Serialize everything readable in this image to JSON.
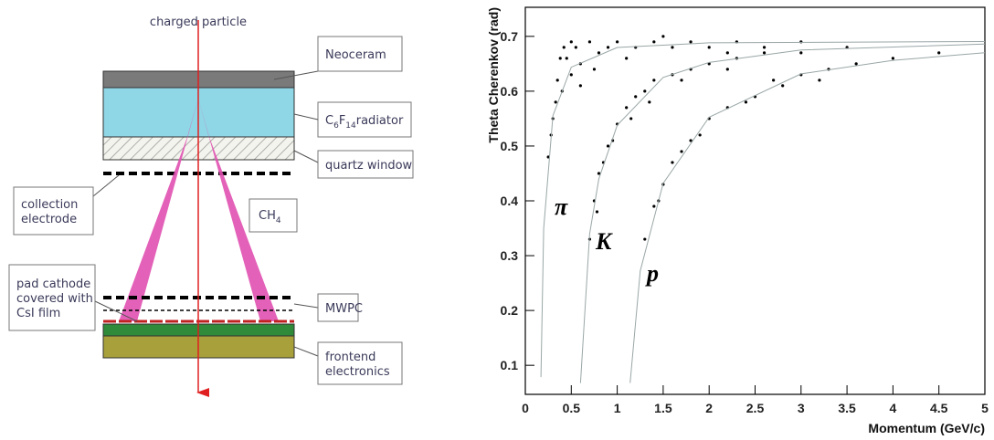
{
  "diagram": {
    "beam_label": "charged particle",
    "radiator_label": [
      "C",
      "6",
      "F",
      "14",
      "radiator"
    ],
    "gas_label": [
      "CH",
      "4"
    ],
    "callouts": [
      {
        "lines": [
          "Neoceram"
        ]
      },
      {
        "lines": [
          "quartz window"
        ]
      },
      {
        "lines": [
          "collection",
          "electrode"
        ]
      },
      {
        "lines": [
          "pad cathode",
          "covered with",
          "CsI film"
        ]
      },
      {
        "lines": [
          "MWPC"
        ]
      },
      {
        "lines": [
          "frontend",
          "electronics"
        ]
      }
    ]
  },
  "chart_data": {
    "type": "scatter",
    "xlabel": "Momentum (GeV/c)",
    "ylabel": "Theta Cherenkov (rad)",
    "xlim": [
      0,
      5
    ],
    "ylim": [
      0.047,
      0.753
    ],
    "xticks": [
      0,
      0.5,
      1,
      1.5,
      2,
      2.5,
      3,
      3.5,
      4,
      4.5,
      5
    ],
    "yticks": [
      0.1,
      0.2,
      0.3,
      0.4,
      0.5,
      0.6,
      0.7
    ],
    "annotations": [
      "π",
      "K",
      "p"
    ],
    "series": [
      {
        "type": "scatter",
        "color": "#000000",
        "x": [
          0.25,
          0.3,
          0.35,
          0.4,
          0.45,
          0.5,
          0.55,
          0.6,
          0.7,
          0.8,
          0.9,
          1.0,
          1.2,
          1.4,
          1.6,
          1.8,
          2.0,
          2.3,
          2.6,
          3.0,
          0.28,
          0.33,
          0.38,
          0.42,
          0.5,
          0.6,
          0.75,
          1.1,
          1.5,
          2.2
        ],
        "y": [
          0.48,
          0.55,
          0.62,
          0.6,
          0.66,
          0.63,
          0.68,
          0.65,
          0.69,
          0.67,
          0.68,
          0.69,
          0.68,
          0.69,
          0.68,
          0.69,
          0.68,
          0.69,
          0.68,
          0.69,
          0.52,
          0.58,
          0.66,
          0.68,
          0.69,
          0.61,
          0.64,
          0.66,
          0.7,
          0.67
        ]
      },
      {
        "type": "scatter",
        "color": "#000000",
        "x": [
          0.7,
          0.75,
          0.8,
          0.85,
          0.9,
          1.0,
          1.1,
          1.2,
          1.3,
          1.4,
          1.6,
          1.8,
          2.0,
          2.3,
          2.6,
          3.0,
          3.5,
          0.78,
          0.95,
          1.15,
          1.35,
          1.7,
          2.2
        ],
        "y": [
          0.33,
          0.4,
          0.45,
          0.47,
          0.5,
          0.54,
          0.57,
          0.59,
          0.6,
          0.62,
          0.63,
          0.64,
          0.65,
          0.66,
          0.67,
          0.67,
          0.68,
          0.38,
          0.51,
          0.55,
          0.58,
          0.62,
          0.64
        ]
      },
      {
        "type": "scatter",
        "color": "#000000",
        "x": [
          1.3,
          1.4,
          1.5,
          1.6,
          1.8,
          2.0,
          2.2,
          2.5,
          2.8,
          3.0,
          3.3,
          3.6,
          4.0,
          4.5,
          1.45,
          1.7,
          1.9,
          2.4,
          2.7,
          3.2
        ],
        "y": [
          0.33,
          0.39,
          0.43,
          0.47,
          0.51,
          0.55,
          0.57,
          0.59,
          0.61,
          0.63,
          0.64,
          0.65,
          0.66,
          0.67,
          0.4,
          0.49,
          0.52,
          0.58,
          0.62,
          0.62
        ]
      },
      {
        "type": "line",
        "color": "#9aa6a6",
        "x": [
          0.17,
          0.2,
          0.3,
          0.5,
          1,
          2,
          5
        ],
        "y": [
          0.0785,
          0.3497,
          0.5553,
          0.6437,
          0.6797,
          0.6883,
          0.6906
        ]
      },
      {
        "type": "line",
        "color": "#9aa6a6",
        "x": [
          0.6,
          0.7,
          0.8,
          1,
          1.5,
          2,
          3,
          5
        ],
        "y": [
          0.0677,
          0.3397,
          0.4403,
          0.5379,
          0.6252,
          0.6525,
          0.6751,
          0.6859
        ]
      },
      {
        "type": "line",
        "color": "#9aa6a6",
        "x": [
          1.14,
          1.25,
          1.5,
          2,
          3,
          4,
          5
        ],
        "y": [
          0.0677,
          0.2723,
          0.432,
          0.5526,
          0.6316,
          0.6562,
          0.67
        ]
      }
    ]
  }
}
